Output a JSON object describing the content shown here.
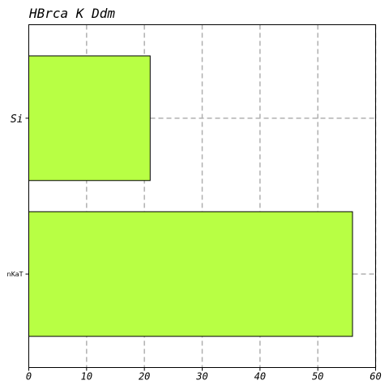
{
  "chart_data": {
    "type": "bar",
    "orientation": "horizontal",
    "title": "HBrca K Ddm",
    "categories": [
      "Si",
      "nKaT"
    ],
    "values": [
      21,
      56
    ],
    "xlim": [
      0,
      60
    ],
    "xticks": [
      0,
      10,
      20,
      30,
      40,
      50,
      60
    ],
    "xlabel": "",
    "ylabel": "",
    "grid": true,
    "legend": "none",
    "bar_color": "#b8ff44",
    "grid_color": "#b0b0b0"
  }
}
